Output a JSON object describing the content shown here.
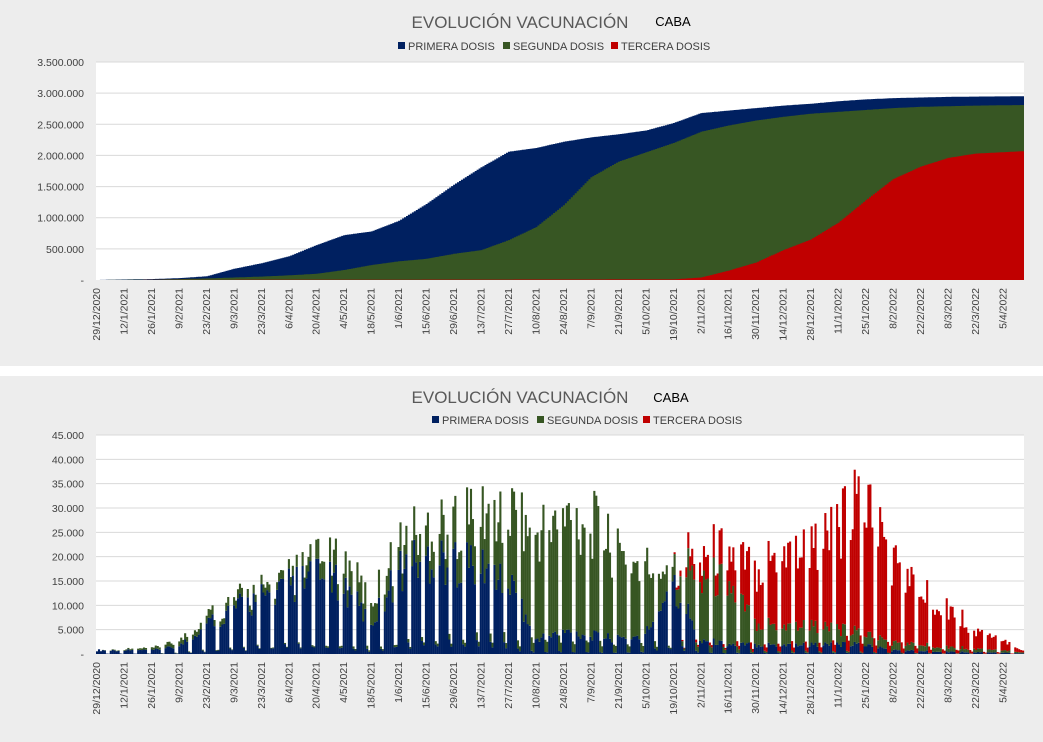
{
  "colors": {
    "primera": "#002060",
    "segunda": "#375623",
    "tercera": "#c00000"
  },
  "chart_data": [
    {
      "type": "area",
      "title": "EVOLUCIÓN VACUNACIÓN",
      "subtitle": "CABA",
      "legend": [
        "PRIMERA DOSIS",
        "SEGUNDA DOSIS",
        "TERCERA DOSIS"
      ],
      "legend_position": "top",
      "grid": true,
      "ylim": [
        0,
        3500000
      ],
      "y_ticks": [
        "-",
        "500.000",
        "1.000.000",
        "1.500.000",
        "2.000.000",
        "2.500.000",
        "3.000.000",
        "3.500.000"
      ],
      "x_ticks": [
        "29/12/2020",
        "12/1/2021",
        "26/1/2021",
        "9/2/2021",
        "23/2/2021",
        "9/3/2021",
        "23/3/2021",
        "6/4/2021",
        "20/4/2021",
        "4/5/2021",
        "18/5/2021",
        "1/6/2021",
        "15/6/2021",
        "29/6/2021",
        "13/7/2021",
        "27/7/2021",
        "10/8/2021",
        "24/8/2021",
        "7/9/2021",
        "21/9/2021",
        "5/10/2021",
        "19/10/2021",
        "2/11/2021",
        "16/11/2021",
        "30/11/2021",
        "14/12/2021",
        "28/12/2021",
        "11/1/2022",
        "25/1/2022",
        "8/2/2022",
        "22/2/2022",
        "8/3/2022",
        "22/3/2022",
        "5/4/2022"
      ],
      "x_day_range": [
        "29/12/2020",
        "16/4/2022"
      ],
      "series": [
        {
          "name": "PRIMERA DOSIS",
          "points": [
            [
              "29/12/2020",
              0
            ],
            [
              "12/1/2021",
              8000
            ],
            [
              "26/1/2021",
              15000
            ],
            [
              "9/2/2021",
              30000
            ],
            [
              "23/2/2021",
              60000
            ],
            [
              "9/3/2021",
              180000
            ],
            [
              "23/3/2021",
              270000
            ],
            [
              "6/4/2021",
              380000
            ],
            [
              "20/4/2021",
              560000
            ],
            [
              "4/5/2021",
              720000
            ],
            [
              "18/5/2021",
              780000
            ],
            [
              "1/6/2021",
              950000
            ],
            [
              "15/6/2021",
              1220000
            ],
            [
              "29/6/2021",
              1530000
            ],
            [
              "13/7/2021",
              1810000
            ],
            [
              "27/7/2021",
              2060000
            ],
            [
              "10/8/2021",
              2120000
            ],
            [
              "24/8/2021",
              2220000
            ],
            [
              "7/9/2021",
              2290000
            ],
            [
              "21/9/2021",
              2340000
            ],
            [
              "5/10/2021",
              2400000
            ],
            [
              "19/10/2021",
              2520000
            ],
            [
              "2/11/2021",
              2680000
            ],
            [
              "16/11/2021",
              2720000
            ],
            [
              "30/11/2021",
              2760000
            ],
            [
              "14/12/2021",
              2800000
            ],
            [
              "28/12/2021",
              2830000
            ],
            [
              "11/1/2022",
              2870000
            ],
            [
              "25/1/2022",
              2900000
            ],
            [
              "8/2/2022",
              2920000
            ],
            [
              "22/2/2022",
              2930000
            ],
            [
              "8/3/2022",
              2940000
            ],
            [
              "22/3/2022",
              2945000
            ],
            [
              "16/4/2022",
              2950000
            ]
          ]
        },
        {
          "name": "SEGUNDA DOSIS",
          "points": [
            [
              "29/12/2020",
              0
            ],
            [
              "12/1/2021",
              2000
            ],
            [
              "26/1/2021",
              5000
            ],
            [
              "9/2/2021",
              15000
            ],
            [
              "23/2/2021",
              25000
            ],
            [
              "9/3/2021",
              40000
            ],
            [
              "23/3/2021",
              55000
            ],
            [
              "6/4/2021",
              75000
            ],
            [
              "20/4/2021",
              100000
            ],
            [
              "4/5/2021",
              160000
            ],
            [
              "18/5/2021",
              240000
            ],
            [
              "1/6/2021",
              300000
            ],
            [
              "15/6/2021",
              340000
            ],
            [
              "29/6/2021",
              420000
            ],
            [
              "13/7/2021",
              480000
            ],
            [
              "27/7/2021",
              640000
            ],
            [
              "10/8/2021",
              850000
            ],
            [
              "24/8/2021",
              1200000
            ],
            [
              "7/9/2021",
              1650000
            ],
            [
              "21/9/2021",
              1900000
            ],
            [
              "5/10/2021",
              2050000
            ],
            [
              "19/10/2021",
              2200000
            ],
            [
              "2/11/2021",
              2380000
            ],
            [
              "16/11/2021",
              2480000
            ],
            [
              "30/11/2021",
              2560000
            ],
            [
              "14/12/2021",
              2620000
            ],
            [
              "28/12/2021",
              2670000
            ],
            [
              "11/1/2022",
              2700000
            ],
            [
              "25/1/2022",
              2730000
            ],
            [
              "8/2/2022",
              2760000
            ],
            [
              "22/2/2022",
              2780000
            ],
            [
              "8/3/2022",
              2790000
            ],
            [
              "22/3/2022",
              2800000
            ],
            [
              "16/4/2022",
              2810000
            ]
          ]
        },
        {
          "name": "TERCERA DOSIS",
          "points": [
            [
              "29/12/2020",
              0
            ],
            [
              "19/10/2021",
              10000
            ],
            [
              "2/11/2021",
              40000
            ],
            [
              "16/11/2021",
              150000
            ],
            [
              "30/11/2021",
              280000
            ],
            [
              "14/12/2021",
              480000
            ],
            [
              "28/12/2021",
              650000
            ],
            [
              "11/1/2022",
              920000
            ],
            [
              "25/1/2022",
              1280000
            ],
            [
              "8/2/2022",
              1620000
            ],
            [
              "22/2/2022",
              1820000
            ],
            [
              "8/3/2022",
              1960000
            ],
            [
              "22/3/2022",
              2030000
            ],
            [
              "16/4/2022",
              2070000
            ]
          ]
        }
      ]
    },
    {
      "type": "bar",
      "title": "EVOLUCIÓN VACUNACIÓN",
      "subtitle": "CABA",
      "legend": [
        "PRIMERA DOSIS",
        "SEGUNDA DOSIS",
        "TERCERA DOSIS"
      ],
      "legend_position": "top",
      "grid": true,
      "stacked": true,
      "ylim": [
        0,
        45000
      ],
      "y_ticks": [
        "-",
        "5.000",
        "10.000",
        "15.000",
        "20.000",
        "25.000",
        "30.000",
        "35.000",
        "40.000",
        "45.000"
      ],
      "x_ticks": [
        "29/12/2020",
        "12/1/2021",
        "26/1/2021",
        "9/2/2021",
        "23/2/2021",
        "9/3/2021",
        "23/3/2021",
        "6/4/2021",
        "20/4/2021",
        "4/5/2021",
        "18/5/2021",
        "1/6/2021",
        "15/6/2021",
        "29/6/2021",
        "13/7/2021",
        "27/7/2021",
        "10/8/2021",
        "24/8/2021",
        "7/9/2021",
        "21/9/2021",
        "5/10/2021",
        "19/10/2021",
        "2/11/2021",
        "16/11/2021",
        "30/11/2021",
        "14/12/2021",
        "28/12/2021",
        "11/1/2022",
        "25/1/2022",
        "8/2/2022",
        "22/2/2022",
        "8/3/2022",
        "22/3/2022",
        "5/4/2022"
      ],
      "x_day_range": [
        "29/12/2020",
        "16/4/2022"
      ],
      "daily_envelope": {
        "PRIMERA DOSIS": [
          [
            "29/12/2020",
            1000
          ],
          [
            "26/1/2021",
            1000
          ],
          [
            "9/2/2021",
            2000
          ],
          [
            "23/2/2021",
            8000
          ],
          [
            "9/3/2021",
            12000
          ],
          [
            "6/4/2021",
            18000
          ],
          [
            "20/4/2021",
            20000
          ],
          [
            "4/5/2021",
            18000
          ],
          [
            "18/5/2021",
            8000
          ],
          [
            "1/6/2021",
            22000
          ],
          [
            "15/6/2021",
            26000
          ],
          [
            "29/6/2021",
            25000
          ],
          [
            "13/7/2021",
            24000
          ],
          [
            "27/7/2021",
            20000
          ],
          [
            "10/8/2021",
            4000
          ],
          [
            "24/8/2021",
            6000
          ],
          [
            "7/9/2021",
            5000
          ],
          [
            "21/9/2021",
            4000
          ],
          [
            "5/10/2021",
            5000
          ],
          [
            "19/10/2021",
            20000
          ],
          [
            "2/11/2021",
            4000
          ],
          [
            "16/11/2021",
            2500
          ],
          [
            "11/1/2022",
            2500
          ],
          [
            "25/1/2022",
            2500
          ],
          [
            "8/2/2022",
            1000
          ],
          [
            "16/4/2022",
            200
          ]
        ],
        "SEGUNDA DOSIS": [
          [
            "29/12/2020",
            0
          ],
          [
            "26/1/2021",
            500
          ],
          [
            "23/2/2021",
            2000
          ],
          [
            "6/4/2021",
            2000
          ],
          [
            "4/5/2021",
            6000
          ],
          [
            "1/6/2021",
            6000
          ],
          [
            "29/6/2021",
            10000
          ],
          [
            "13/7/2021",
            14000
          ],
          [
            "27/7/2021",
            18000
          ],
          [
            "10/8/2021",
            28000
          ],
          [
            "24/8/2021",
            30000
          ],
          [
            "7/9/2021",
            30000
          ],
          [
            "21/9/2021",
            22000
          ],
          [
            "5/10/2021",
            18000
          ],
          [
            "19/10/2021",
            4000
          ],
          [
            "2/11/2021",
            18000
          ],
          [
            "16/11/2021",
            16000
          ],
          [
            "30/11/2021",
            6000
          ],
          [
            "14/12/2021",
            5000
          ],
          [
            "28/12/2021",
            5000
          ],
          [
            "11/1/2022",
            4000
          ],
          [
            "25/1/2022",
            3000
          ],
          [
            "8/2/2022",
            2000
          ],
          [
            "16/4/2022",
            300
          ]
        ],
        "TERCERA DOSIS": [
          [
            "29/12/2020",
            0
          ],
          [
            "19/10/2021",
            0
          ],
          [
            "2/11/2021",
            6000
          ],
          [
            "16/11/2021",
            8000
          ],
          [
            "30/11/2021",
            14000
          ],
          [
            "14/12/2021",
            20000
          ],
          [
            "28/12/2021",
            20000
          ],
          [
            "11/1/2022",
            26000
          ],
          [
            "25/1/2022",
            36000
          ],
          [
            "8/2/2022",
            22000
          ],
          [
            "22/2/2022",
            14000
          ],
          [
            "8/3/2022",
            11000
          ],
          [
            "22/3/2022",
            5000
          ],
          [
            "16/4/2022",
            600
          ]
        ]
      }
    }
  ]
}
